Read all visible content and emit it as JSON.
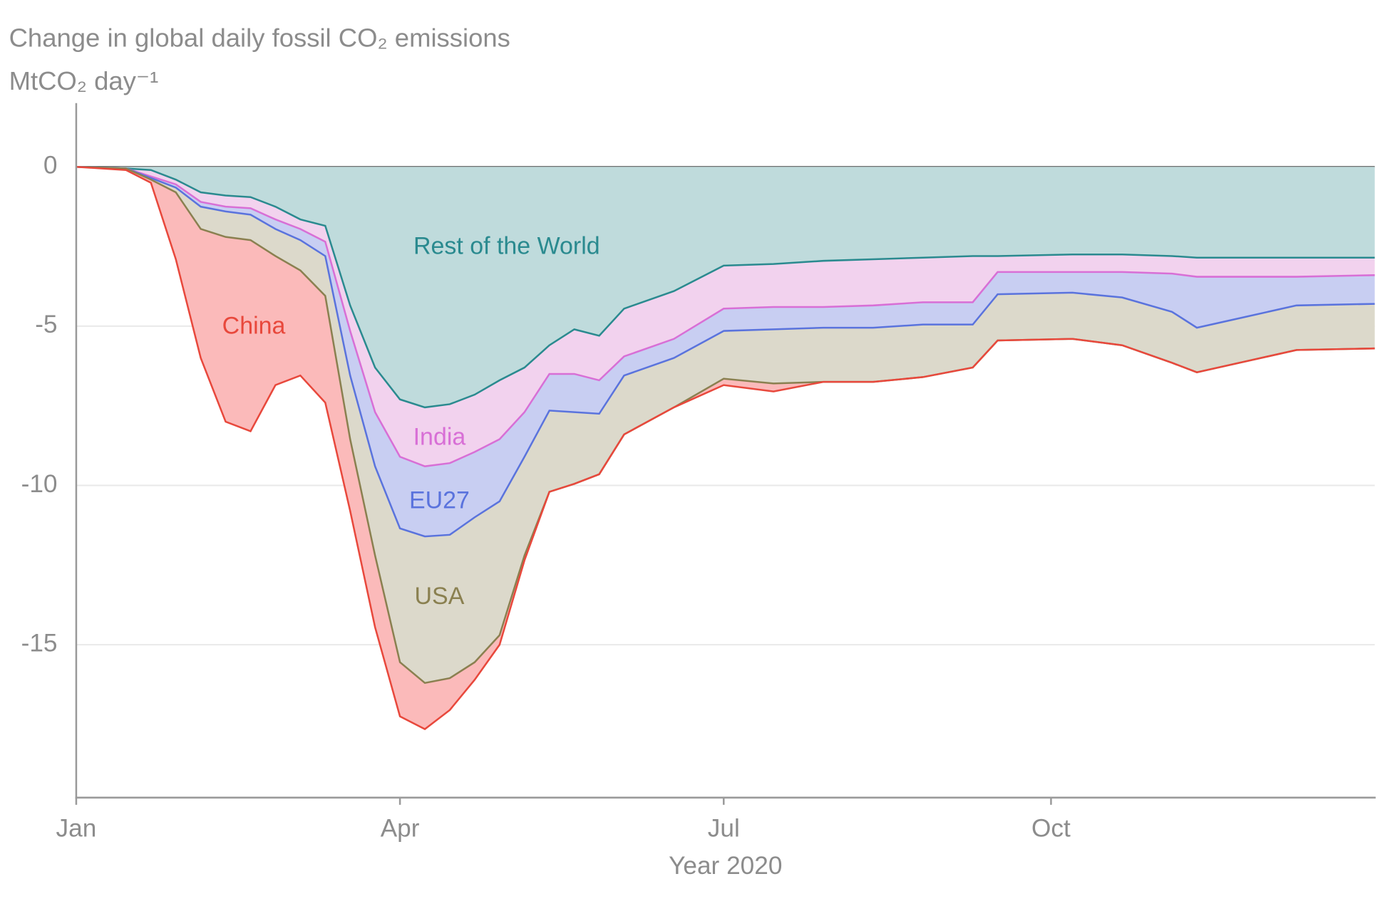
{
  "chart_data": {
    "type": "stacked_area",
    "title": "Change in global daily fossil CO₂ emissions",
    "subtitle": "MtCO₂ day⁻¹",
    "x_label": "Year 2020",
    "x": [
      0,
      14,
      21,
      28,
      35,
      42,
      49,
      56,
      63,
      70,
      77,
      84,
      91,
      98,
      105,
      112,
      119,
      126,
      133,
      140,
      147,
      154,
      168,
      182,
      196,
      210,
      224,
      238,
      252,
      259,
      280,
      294,
      308,
      315,
      329,
      343,
      365
    ],
    "xlim": [
      0,
      365
    ],
    "xticks": [
      {
        "value": 0,
        "label": "Jan"
      },
      {
        "value": 91,
        "label": "Apr"
      },
      {
        "value": 182,
        "label": "Jul"
      },
      {
        "value": 274,
        "label": "Oct"
      }
    ],
    "ylim": [
      -19.8,
      2
    ],
    "yticks": [
      -15,
      -10,
      -5,
      0
    ],
    "grid": true,
    "series": [
      {
        "name": "Rest of the World",
        "color": "#bfdbdc",
        "line_color": "#2a8a8f",
        "values": [
          0,
          -0.05,
          -0.1,
          -0.4,
          -0.8,
          -0.9,
          -0.95,
          -1.25,
          -1.65,
          -1.85,
          -4.35,
          -6.3,
          -7.3,
          -7.55,
          -7.45,
          -7.15,
          -6.7,
          -6.3,
          -5.6,
          -5.1,
          -5.3,
          -4.45,
          -3.9,
          -3.1,
          -3.05,
          -2.95,
          -2.9,
          -2.85,
          -2.8,
          -2.8,
          -2.75,
          -2.75,
          -2.8,
          -2.85,
          -2.85,
          -2.85,
          -2.85
        ]
      },
      {
        "name": "India",
        "color": "#f2d2ee",
        "line_color": "#d86fd6",
        "values": [
          0,
          0,
          -0.2,
          -0.15,
          -0.3,
          -0.35,
          -0.35,
          -0.4,
          -0.3,
          -0.5,
          -0.8,
          -1.4,
          -1.8,
          -1.85,
          -1.85,
          -1.8,
          -1.85,
          -1.4,
          -0.9,
          -1.4,
          -1.4,
          -1.5,
          -1.5,
          -1.35,
          -1.35,
          -1.45,
          -1.45,
          -1.4,
          -1.45,
          -0.5,
          -0.55,
          -0.55,
          -0.55,
          -0.6,
          -0.6,
          -0.6,
          -0.55
        ]
      },
      {
        "name": "EU27",
        "color": "#c8cef2",
        "line_color": "#5a73dd",
        "values": [
          0,
          0,
          -0.05,
          -0.1,
          -0.15,
          -0.15,
          -0.2,
          -0.3,
          -0.35,
          -0.45,
          -1.4,
          -1.7,
          -2.25,
          -2.2,
          -2.25,
          -2.05,
          -1.95,
          -1.4,
          -1.15,
          -1.2,
          -1.05,
          -0.6,
          -0.6,
          -0.7,
          -0.7,
          -0.65,
          -0.7,
          -0.7,
          -0.7,
          -0.7,
          -0.65,
          -0.8,
          -1.2,
          -1.6,
          -1.25,
          -0.9,
          -0.9
        ]
      },
      {
        "name": "USA",
        "color": "#dcd9cb",
        "line_color": "#8a8050",
        "values": [
          0,
          0,
          -0.05,
          -0.15,
          -0.7,
          -0.8,
          -0.8,
          -0.85,
          -0.95,
          -1.25,
          -2.0,
          -2.8,
          -4.2,
          -4.6,
          -4.5,
          -4.55,
          -4.2,
          -3.1,
          -2.55,
          -2.25,
          -1.9,
          -1.85,
          -1.55,
          -1.5,
          -1.7,
          -1.7,
          -1.7,
          -1.65,
          -1.35,
          -1.45,
          -1.45,
          -1.5,
          -1.6,
          -1.4,
          -1.4,
          -1.4,
          -1.4
        ]
      },
      {
        "name": "China",
        "color": "#fbbaba",
        "line_color": "#e8483c",
        "values": [
          0,
          -0.05,
          -0.1,
          -2.1,
          -4.05,
          -5.8,
          -6.0,
          -4.05,
          -3.3,
          -3.35,
          -2.25,
          -2.25,
          -1.7,
          -1.45,
          -1.0,
          -0.55,
          -0.3,
          -0.15,
          0,
          0,
          0,
          0,
          0,
          -0.2,
          -0.25,
          0,
          0,
          0,
          0,
          0,
          0,
          0,
          0,
          0,
          0,
          0,
          0
        ]
      }
    ]
  }
}
